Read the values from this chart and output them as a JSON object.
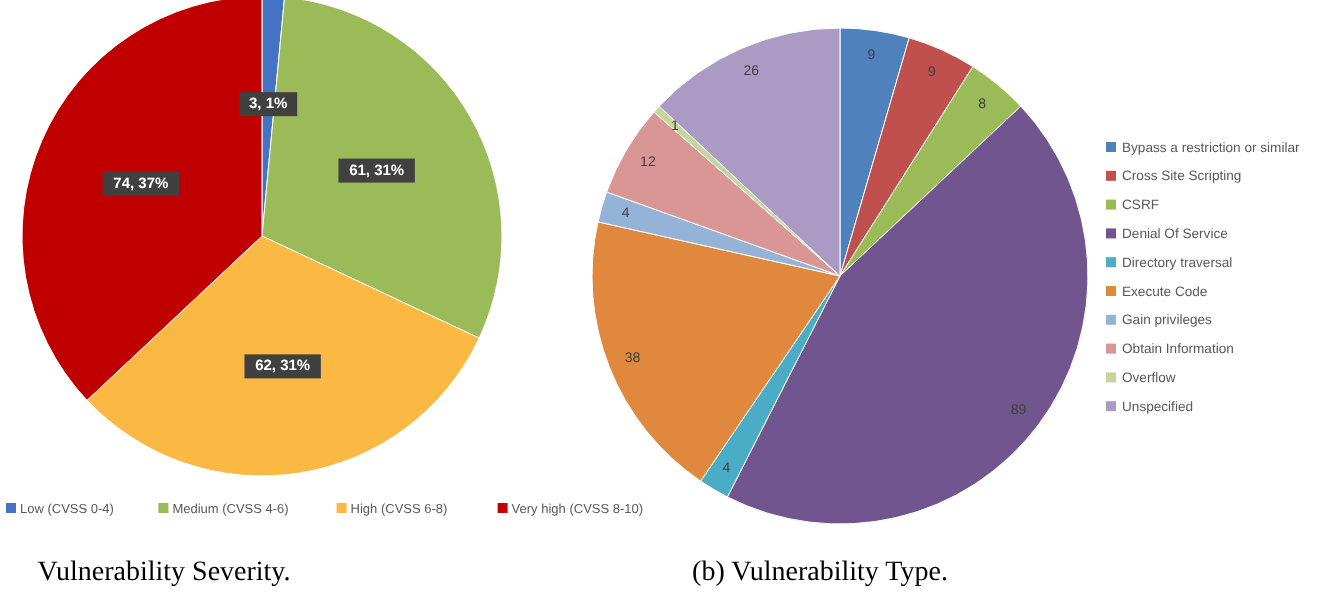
{
  "chart_data": [
    {
      "type": "pie",
      "categories": [
        "Low (CVSS 0-4)",
        "Medium (CVSS 4-6)",
        "High (CVSS 6-8)",
        "Very high (CVSS 8-10)"
      ],
      "values": [
        3,
        61,
        62,
        74
      ],
      "colors": [
        "#4472c4",
        "#9bbb59",
        "#fbb944",
        "#c00000"
      ],
      "value_labels": [
        "3, 1%",
        "61, 31%",
        "62, 31%",
        "74, 37%"
      ],
      "legend": "bottom",
      "annotations": [
        "Vulnerability Severity."
      ]
    },
    {
      "type": "pie",
      "categories": [
        "Bypass a restriction or similar",
        "Cross Site Scripting",
        "CSRF",
        "Denial Of Service",
        "Directory traversal",
        "Execute Code",
        "Gain privileges",
        "Obtain Information",
        "Overflow",
        "Unspecified"
      ],
      "values": [
        9,
        9,
        8,
        89,
        4,
        38,
        4,
        12,
        1,
        26
      ],
      "colors": [
        "#4f81bd",
        "#c0504d",
        "#9bbb59",
        "#70558f",
        "#4bacc6",
        "#e0883d",
        "#95b3d7",
        "#d99694",
        "#c3d69b",
        "#ab9bc4"
      ],
      "data_labels": true,
      "legend": "right",
      "annotations": [
        "(b) Vulnerability Type."
      ]
    }
  ]
}
